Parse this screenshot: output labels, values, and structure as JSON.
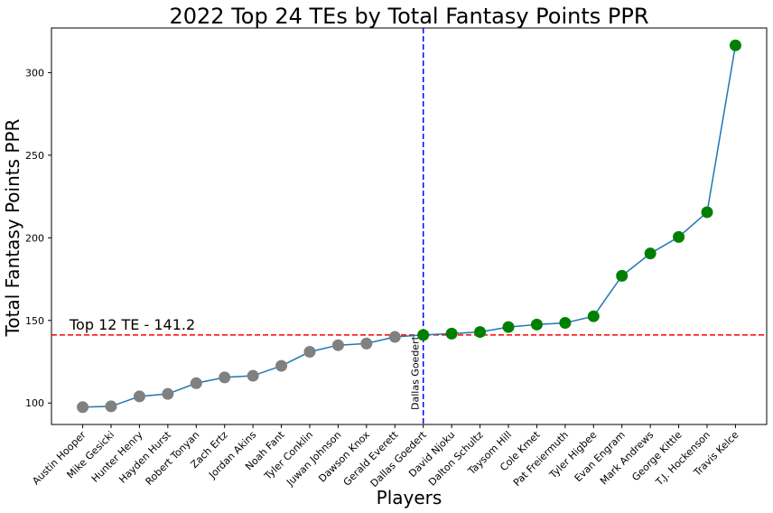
{
  "chart_data": {
    "type": "line",
    "title": "2022 Top 24 TEs by Total Fantasy Points PPR",
    "xlabel": "Players",
    "ylabel": "Total Fantasy Points PPR",
    "ylim": [
      87,
      327
    ],
    "yticks": [
      100,
      150,
      200,
      250,
      300
    ],
    "categories": [
      "Austin Hooper",
      "Mike Gesicki",
      "Hunter Henry",
      "Hayden Hurst",
      "Robert Tonyan",
      "Zach Ertz",
      "Jordan Akins",
      "Noah Fant",
      "Tyler Conklin",
      "Juwan Johnson",
      "Dawson Knox",
      "Gerald Everett",
      "Dallas Goedert",
      "David Njoku",
      "Dalton Schultz",
      "Taysom Hill",
      "Cole Kmet",
      "Pat Freiermuth",
      "Tyler Higbee",
      "Evan Engram",
      "Mark Andrews",
      "George Kittle",
      "T.J. Hockenson",
      "Travis Kelce"
    ],
    "series": [
      {
        "values": [
          97.5,
          98.0,
          104.0,
          105.5,
          112.0,
          115.5,
          116.5,
          122.5,
          131.0,
          135.0,
          136.0,
          140.0,
          141.2,
          142.0,
          143.0,
          146.0,
          147.5,
          148.5,
          152.5,
          177.0,
          190.5,
          200.5,
          215.5,
          316.5
        ],
        "line_color": "#1f77b4",
        "marker_colors": [
          "gray",
          "gray",
          "gray",
          "gray",
          "gray",
          "gray",
          "gray",
          "gray",
          "gray",
          "gray",
          "gray",
          "gray",
          "green",
          "green",
          "green",
          "green",
          "green",
          "green",
          "green",
          "green",
          "green",
          "green",
          "green",
          "green"
        ]
      }
    ],
    "hline": {
      "value": 141.2,
      "label": "Top 12 TE - 141.2",
      "color": "#ff0000"
    },
    "vline": {
      "category": "Dallas Goedert",
      "label": "Dallas Goedert",
      "color": "#0000ff"
    },
    "grid": false
  }
}
